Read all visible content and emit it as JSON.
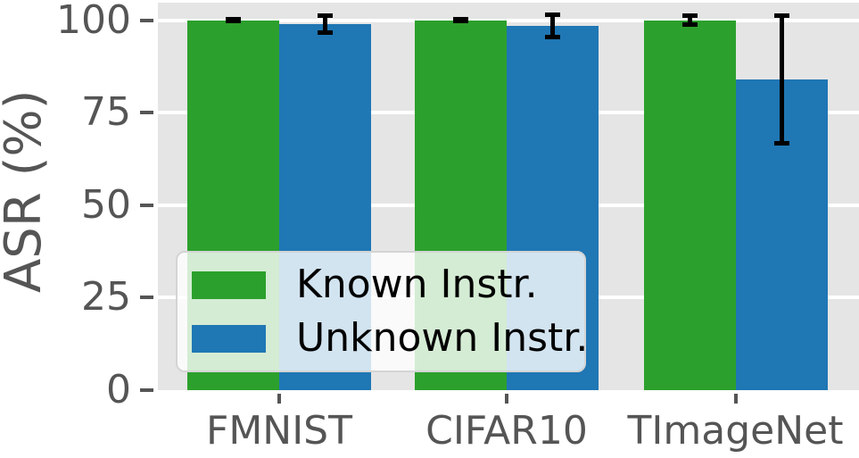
{
  "chart_data": {
    "type": "bar",
    "title": "",
    "categories": [
      "FMNIST",
      "CIFAR10",
      "TImageNet"
    ],
    "series": [
      {
        "name": "Known Instr.",
        "color": "#2ca02c",
        "values": [
          100,
          100,
          100
        ],
        "errors": [
          0.4,
          0.4,
          1.3
        ]
      },
      {
        "name": "Unknown Instr.",
        "color": "#1f77b4",
        "values": [
          99,
          98.5,
          84
        ],
        "errors": [
          2.4,
          3.1,
          17.4
        ]
      }
    ],
    "xlabel": "",
    "ylabel": "ASR (%)",
    "yticks": [
      0,
      25,
      50,
      75,
      100
    ],
    "ylim": [
      0,
      104.7
    ],
    "grid": true,
    "grid_color": "#ffffff",
    "plot_bg": "#e5e5e5",
    "tick_label_color": "#555555",
    "error_bar_color": "#000000",
    "legend_position": "lower left"
  }
}
